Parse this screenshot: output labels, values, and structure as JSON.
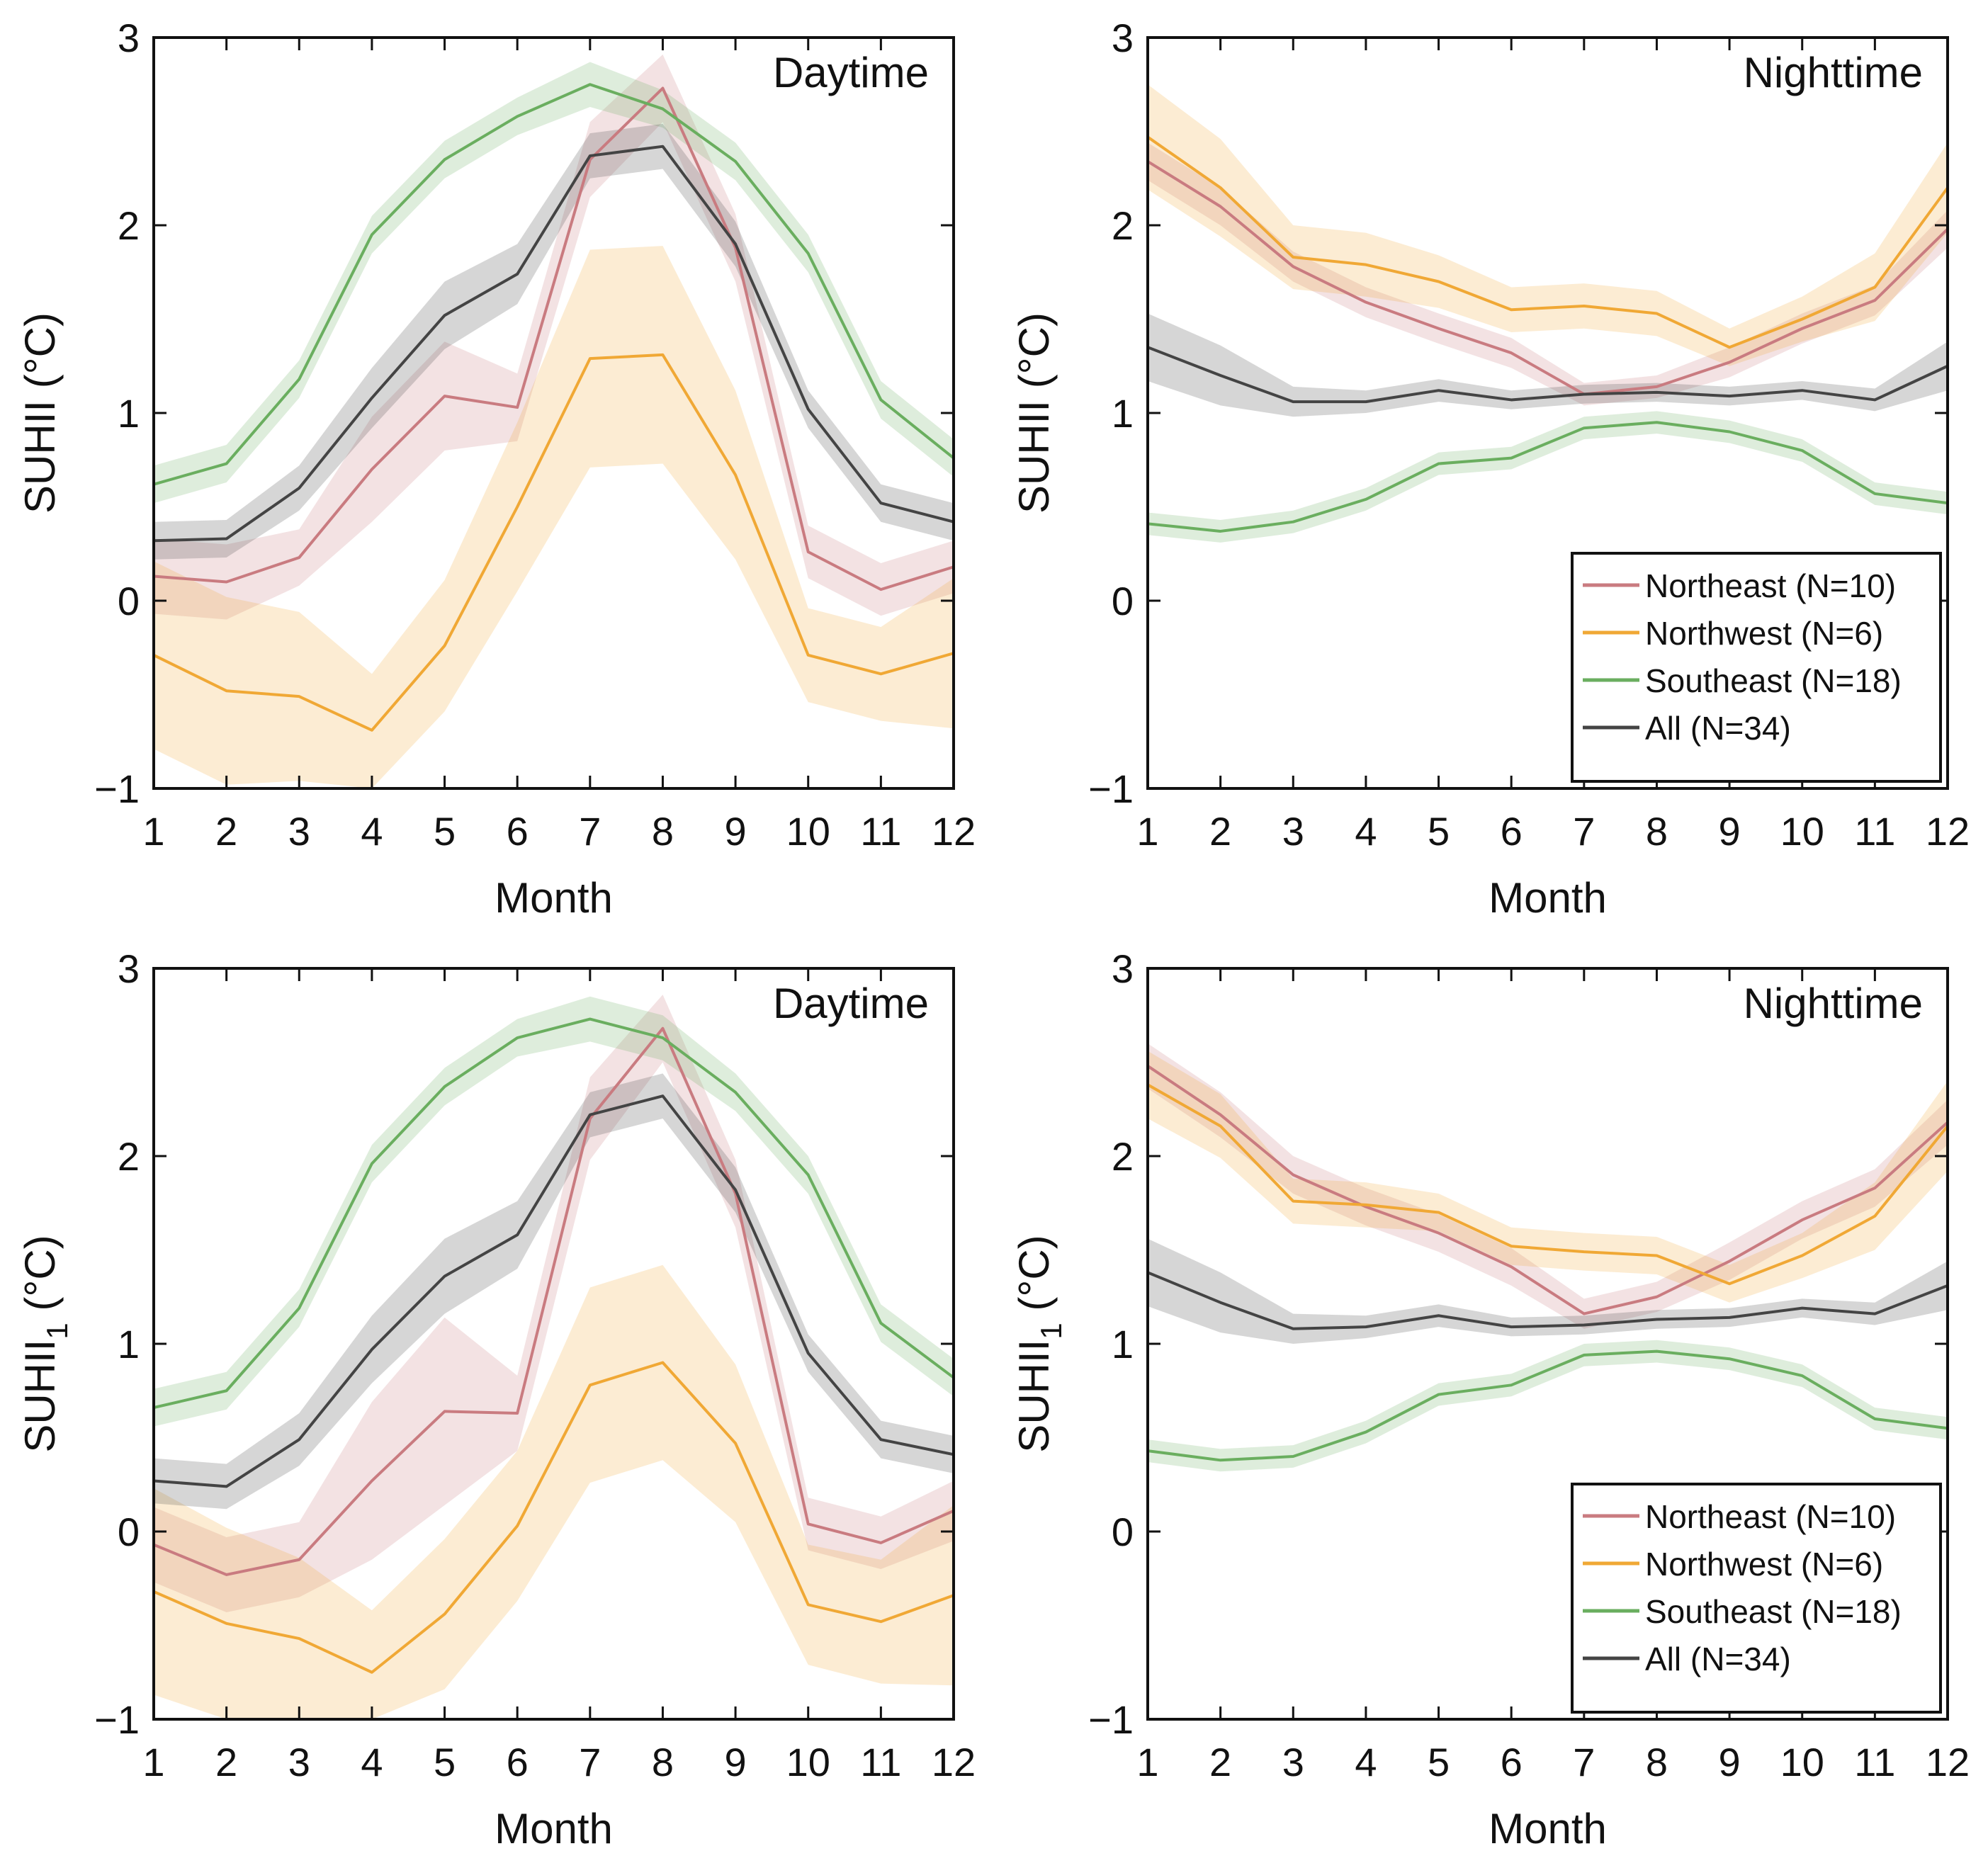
{
  "figure": {
    "colors": {
      "Northeast": "#c97b80",
      "Northwest": "#f0a835",
      "Southeast": "#6aae5f",
      "All": "#444444",
      "axis": "#111111"
    },
    "common_xlabel": "Month",
    "legend": [
      {
        "key": "Northeast",
        "label": "Northeast (N=10)"
      },
      {
        "key": "Northwest",
        "label": "Northwest (N=6)"
      },
      {
        "key": "Southeast",
        "label": "Southeast (N=18)"
      },
      {
        "key": "All",
        "label": "All (N=34)"
      }
    ]
  },
  "chart_data": [
    {
      "id": "top-left",
      "type": "line",
      "title": "Daytime",
      "xlabel": "Month",
      "ylabel": "SUHII (°C)",
      "ylabel_sub": "",
      "xlim": [
        1,
        12
      ],
      "ylim": [
        -1,
        3
      ],
      "xticks": [
        1,
        2,
        3,
        4,
        5,
        6,
        7,
        8,
        9,
        10,
        11,
        12
      ],
      "yticks": [
        -1,
        0,
        1,
        2,
        3
      ],
      "legend": false,
      "x": [
        1,
        2,
        3,
        4,
        5,
        6,
        7,
        8,
        9,
        10,
        11,
        12
      ],
      "series": [
        {
          "name": "Northeast",
          "values": [
            0.13,
            0.1,
            0.23,
            0.7,
            1.09,
            1.03,
            2.35,
            2.73,
            1.88,
            0.26,
            0.06,
            0.18
          ],
          "lower": [
            -0.07,
            -0.1,
            0.08,
            0.42,
            0.8,
            0.85,
            2.15,
            2.55,
            1.7,
            0.12,
            -0.08,
            0.04
          ],
          "upper": [
            0.33,
            0.3,
            0.38,
            0.98,
            1.38,
            1.21,
            2.55,
            2.91,
            2.06,
            0.4,
            0.2,
            0.32
          ]
        },
        {
          "name": "Northwest",
          "values": [
            -0.29,
            -0.48,
            -0.51,
            -0.69,
            -0.24,
            0.5,
            1.29,
            1.31,
            0.67,
            -0.29,
            -0.39,
            -0.28
          ],
          "lower": [
            -0.79,
            -0.98,
            -0.96,
            -1.0,
            -0.59,
            0.05,
            0.71,
            0.73,
            0.22,
            -0.54,
            -0.64,
            -0.68
          ],
          "upper": [
            0.21,
            0.02,
            -0.06,
            -0.39,
            0.11,
            0.95,
            1.87,
            1.89,
            1.12,
            -0.04,
            -0.14,
            0.12
          ]
        },
        {
          "name": "Southeast",
          "values": [
            0.62,
            0.73,
            1.18,
            1.95,
            2.35,
            2.58,
            2.75,
            2.62,
            2.34,
            1.85,
            1.07,
            0.76
          ],
          "lower": [
            0.52,
            0.63,
            1.08,
            1.85,
            2.25,
            2.48,
            2.63,
            2.52,
            2.24,
            1.75,
            0.97,
            0.66
          ],
          "upper": [
            0.72,
            0.83,
            1.28,
            2.05,
            2.45,
            2.68,
            2.87,
            2.72,
            2.44,
            1.95,
            1.17,
            0.86
          ]
        },
        {
          "name": "All",
          "values": [
            0.32,
            0.33,
            0.6,
            1.08,
            1.52,
            1.74,
            2.37,
            2.42,
            1.9,
            1.02,
            0.52,
            0.42
          ],
          "lower": [
            0.22,
            0.23,
            0.48,
            0.92,
            1.34,
            1.58,
            2.25,
            2.3,
            1.78,
            0.92,
            0.42,
            0.32
          ],
          "upper": [
            0.42,
            0.43,
            0.72,
            1.24,
            1.7,
            1.9,
            2.49,
            2.54,
            2.02,
            1.12,
            0.62,
            0.52
          ]
        }
      ]
    },
    {
      "id": "top-right",
      "type": "line",
      "title": "Nighttime",
      "xlabel": "Month",
      "ylabel": "SUHII (°C)",
      "ylabel_sub": "",
      "xlim": [
        1,
        12
      ],
      "ylim": [
        -1,
        3
      ],
      "xticks": [
        1,
        2,
        3,
        4,
        5,
        6,
        7,
        8,
        9,
        10,
        11,
        12
      ],
      "yticks": [
        -1,
        0,
        1,
        2,
        3
      ],
      "legend": true,
      "legend_position": "bottom-right",
      "x": [
        1,
        2,
        3,
        4,
        5,
        6,
        7,
        8,
        9,
        10,
        11,
        12
      ],
      "series": [
        {
          "name": "Northeast",
          "values": [
            2.34,
            2.1,
            1.78,
            1.59,
            1.45,
            1.32,
            1.1,
            1.14,
            1.27,
            1.45,
            1.6,
            1.98
          ],
          "lower": [
            2.24,
            2.0,
            1.7,
            1.51,
            1.37,
            1.24,
            1.04,
            1.08,
            1.19,
            1.37,
            1.52,
            1.88
          ],
          "upper": [
            2.44,
            2.2,
            1.86,
            1.67,
            1.53,
            1.4,
            1.16,
            1.2,
            1.35,
            1.53,
            1.68,
            2.08
          ]
        },
        {
          "name": "Northwest",
          "values": [
            2.47,
            2.2,
            1.83,
            1.79,
            1.7,
            1.55,
            1.57,
            1.53,
            1.35,
            1.5,
            1.67,
            2.2
          ],
          "lower": [
            2.19,
            1.94,
            1.66,
            1.62,
            1.56,
            1.43,
            1.45,
            1.41,
            1.25,
            1.38,
            1.49,
            1.96
          ],
          "upper": [
            2.75,
            2.46,
            2.0,
            1.96,
            1.84,
            1.67,
            1.69,
            1.65,
            1.45,
            1.62,
            1.85,
            2.44
          ]
        },
        {
          "name": "Southeast",
          "values": [
            0.41,
            0.37,
            0.42,
            0.54,
            0.73,
            0.76,
            0.92,
            0.95,
            0.9,
            0.8,
            0.57,
            0.52
          ],
          "lower": [
            0.35,
            0.31,
            0.36,
            0.48,
            0.67,
            0.7,
            0.86,
            0.89,
            0.84,
            0.74,
            0.51,
            0.46
          ],
          "upper": [
            0.47,
            0.43,
            0.48,
            0.6,
            0.79,
            0.82,
            0.98,
            1.01,
            0.96,
            0.86,
            0.63,
            0.58
          ]
        },
        {
          "name": "All",
          "values": [
            1.35,
            1.2,
            1.06,
            1.06,
            1.12,
            1.07,
            1.1,
            1.11,
            1.09,
            1.12,
            1.07,
            1.25
          ],
          "lower": [
            1.17,
            1.04,
            0.98,
            1.0,
            1.06,
            1.02,
            1.05,
            1.06,
            1.04,
            1.07,
            1.01,
            1.12
          ],
          "upper": [
            1.53,
            1.36,
            1.14,
            1.12,
            1.18,
            1.12,
            1.15,
            1.16,
            1.14,
            1.17,
            1.13,
            1.38
          ]
        }
      ]
    },
    {
      "id": "bottom-left",
      "type": "line",
      "title": "Daytime",
      "xlabel": "Month",
      "ylabel": "SUHII",
      "ylabel_sub": "1",
      "ylabel_unit": " (°C)",
      "xlim": [
        1,
        12
      ],
      "ylim": [
        -1,
        3
      ],
      "xticks": [
        1,
        2,
        3,
        4,
        5,
        6,
        7,
        8,
        9,
        10,
        11,
        12
      ],
      "yticks": [
        -1,
        0,
        1,
        2,
        3
      ],
      "legend": false,
      "x": [
        1,
        2,
        3,
        4,
        5,
        6,
        7,
        8,
        9,
        10,
        11,
        12
      ],
      "series": [
        {
          "name": "Northeast",
          "values": [
            -0.07,
            -0.23,
            -0.15,
            0.27,
            0.64,
            0.63,
            2.2,
            2.68,
            1.8,
            0.04,
            -0.06,
            0.11
          ],
          "lower": [
            -0.27,
            -0.43,
            -0.35,
            -0.15,
            0.14,
            0.43,
            1.98,
            2.5,
            1.62,
            -0.1,
            -0.2,
            -0.05
          ],
          "upper": [
            0.13,
            -0.03,
            0.05,
            0.69,
            1.14,
            0.83,
            2.42,
            2.86,
            1.98,
            0.18,
            0.08,
            0.27
          ]
        },
        {
          "name": "Northwest",
          "values": [
            -0.32,
            -0.49,
            -0.57,
            -0.75,
            -0.44,
            0.03,
            0.78,
            0.9,
            0.47,
            -0.39,
            -0.48,
            -0.34
          ],
          "lower": [
            -0.87,
            -1.0,
            -1.0,
            -1.0,
            -0.84,
            -0.37,
            0.26,
            0.38,
            0.05,
            -0.71,
            -0.81,
            -0.82
          ],
          "upper": [
            0.23,
            0.02,
            -0.14,
            -0.42,
            -0.04,
            0.43,
            1.3,
            1.42,
            0.89,
            -0.07,
            -0.15,
            0.14
          ]
        },
        {
          "name": "Southeast",
          "values": [
            0.66,
            0.75,
            1.19,
            1.96,
            2.37,
            2.63,
            2.73,
            2.63,
            2.34,
            1.9,
            1.11,
            0.82
          ],
          "lower": [
            0.56,
            0.65,
            1.09,
            1.86,
            2.27,
            2.53,
            2.61,
            2.51,
            2.24,
            1.8,
            1.01,
            0.72
          ],
          "upper": [
            0.76,
            0.85,
            1.29,
            2.06,
            2.47,
            2.73,
            2.85,
            2.75,
            2.44,
            2.0,
            1.21,
            0.92
          ]
        },
        {
          "name": "All",
          "values": [
            0.27,
            0.24,
            0.49,
            0.97,
            1.36,
            1.58,
            2.22,
            2.32,
            1.82,
            0.95,
            0.49,
            0.41
          ],
          "lower": [
            0.15,
            0.12,
            0.35,
            0.79,
            1.16,
            1.4,
            2.1,
            2.2,
            1.7,
            0.85,
            0.39,
            0.31
          ],
          "upper": [
            0.39,
            0.36,
            0.63,
            1.15,
            1.56,
            1.76,
            2.34,
            2.44,
            1.94,
            1.05,
            0.59,
            0.51
          ]
        }
      ]
    },
    {
      "id": "bottom-right",
      "type": "line",
      "title": "Nighttime",
      "xlabel": "Month",
      "ylabel": "SUHII",
      "ylabel_sub": "1",
      "ylabel_unit": " (°C)",
      "xlim": [
        1,
        12
      ],
      "ylim": [
        -1,
        3
      ],
      "xticks": [
        1,
        2,
        3,
        4,
        5,
        6,
        7,
        8,
        9,
        10,
        11,
        12
      ],
      "yticks": [
        -1,
        0,
        1,
        2,
        3
      ],
      "legend": true,
      "legend_position": "bottom-right",
      "x": [
        1,
        2,
        3,
        4,
        5,
        6,
        7,
        8,
        9,
        10,
        11,
        12
      ],
      "series": [
        {
          "name": "Northeast",
          "values": [
            2.48,
            2.22,
            1.9,
            1.73,
            1.59,
            1.41,
            1.16,
            1.25,
            1.44,
            1.66,
            1.83,
            2.18
          ],
          "lower": [
            2.36,
            2.1,
            1.8,
            1.63,
            1.49,
            1.31,
            1.08,
            1.17,
            1.34,
            1.56,
            1.73,
            2.06
          ],
          "upper": [
            2.6,
            2.34,
            2.0,
            1.83,
            1.69,
            1.51,
            1.24,
            1.33,
            1.54,
            1.76,
            1.93,
            2.3
          ]
        },
        {
          "name": "Northwest",
          "values": [
            2.38,
            2.16,
            1.76,
            1.74,
            1.7,
            1.52,
            1.49,
            1.47,
            1.32,
            1.47,
            1.68,
            2.16
          ],
          "lower": [
            2.2,
            1.99,
            1.64,
            1.62,
            1.6,
            1.42,
            1.39,
            1.37,
            1.22,
            1.35,
            1.5,
            1.92
          ],
          "upper": [
            2.56,
            2.33,
            1.88,
            1.86,
            1.8,
            1.62,
            1.59,
            1.57,
            1.42,
            1.59,
            1.86,
            2.4
          ]
        },
        {
          "name": "Southeast",
          "values": [
            0.43,
            0.38,
            0.4,
            0.53,
            0.73,
            0.78,
            0.94,
            0.96,
            0.92,
            0.83,
            0.6,
            0.55
          ],
          "lower": [
            0.37,
            0.32,
            0.34,
            0.47,
            0.67,
            0.72,
            0.88,
            0.9,
            0.86,
            0.77,
            0.54,
            0.49
          ],
          "upper": [
            0.49,
            0.44,
            0.46,
            0.59,
            0.79,
            0.84,
            1.0,
            1.02,
            0.98,
            0.89,
            0.66,
            0.61
          ]
        },
        {
          "name": "All",
          "values": [
            1.38,
            1.22,
            1.08,
            1.09,
            1.15,
            1.09,
            1.1,
            1.13,
            1.14,
            1.19,
            1.16,
            1.31
          ],
          "lower": [
            1.2,
            1.06,
            1.0,
            1.03,
            1.09,
            1.04,
            1.05,
            1.08,
            1.09,
            1.14,
            1.1,
            1.18
          ],
          "upper": [
            1.56,
            1.38,
            1.16,
            1.15,
            1.21,
            1.14,
            1.15,
            1.18,
            1.19,
            1.24,
            1.22,
            1.44
          ]
        }
      ]
    }
  ]
}
